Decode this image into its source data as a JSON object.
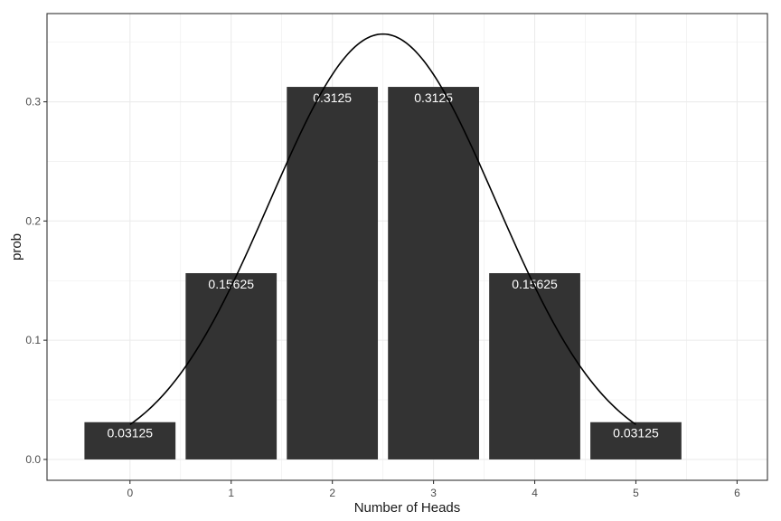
{
  "chart_data": {
    "type": "bar",
    "title": "",
    "xlabel": "Number of Heads",
    "ylabel": "prob",
    "categories": [
      "0",
      "1",
      "2",
      "3",
      "4",
      "5"
    ],
    "x": [
      0,
      1,
      2,
      3,
      4,
      5
    ],
    "values": [
      0.03125,
      0.15625,
      0.3125,
      0.3125,
      0.15625,
      0.03125
    ],
    "data_labels": [
      "0.03125",
      "0.15625",
      "0.3125",
      "0.3125",
      "0.15625",
      "0.03125"
    ],
    "xlim": [
      -0.82,
      6.3
    ],
    "ylim": [
      -0.0175,
      0.374
    ],
    "x_ticks": [
      0,
      1,
      2,
      3,
      4,
      5,
      6
    ],
    "x_tick_labels": [
      "0",
      "1",
      "2",
      "3",
      "4",
      "5",
      "6"
    ],
    "y_ticks": [
      0.0,
      0.1,
      0.2,
      0.3
    ],
    "y_tick_labels": [
      "0.0",
      "0.1",
      "0.2",
      "0.3"
    ],
    "grid": true,
    "legend": "none",
    "overlay_curve": {
      "type": "line",
      "description_of_shape": "normal density",
      "mean": 2.5,
      "sd": 1.118,
      "x_range": [
        0,
        5
      ]
    },
    "colors": {
      "bar": "#333333",
      "bar_label": "#ffffff",
      "curve": "#000000",
      "grid": "#ebebeb",
      "panel_border": "#333333"
    }
  }
}
